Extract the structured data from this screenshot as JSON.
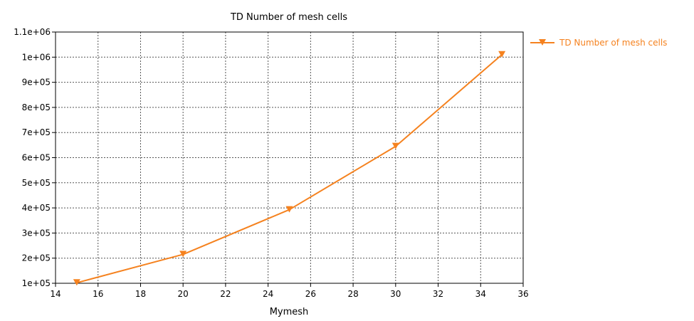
{
  "chart_data": {
    "type": "line",
    "title": "TD Number of mesh cells",
    "xlabel": "Mymesh",
    "ylabel": "",
    "xlim": [
      14,
      36
    ],
    "ylim": [
      100000,
      1100000
    ],
    "x_ticks": [
      14,
      16,
      18,
      20,
      22,
      24,
      26,
      28,
      30,
      32,
      34,
      36
    ],
    "x_tick_labels": [
      "14",
      "16",
      "18",
      "20",
      "22",
      "24",
      "26",
      "28",
      "30",
      "32",
      "34",
      "36"
    ],
    "y_ticks": [
      100000,
      200000,
      300000,
      400000,
      500000,
      600000,
      700000,
      800000,
      900000,
      1000000,
      1100000
    ],
    "y_tick_labels": [
      "1e+05",
      "2e+05",
      "3e+05",
      "4e+05",
      "5e+05",
      "6e+05",
      "7e+05",
      "8e+05",
      "9e+05",
      "1e+06",
      "1.1e+06"
    ],
    "grid": true,
    "legend_position": "right",
    "series": [
      {
        "name": "TD Number of mesh cells",
        "color": "#f5821f",
        "marker": "triangle-down",
        "x": [
          15,
          20,
          25,
          30,
          35
        ],
        "y": [
          102000,
          215000,
          393000,
          645000,
          1010000
        ]
      }
    ]
  }
}
